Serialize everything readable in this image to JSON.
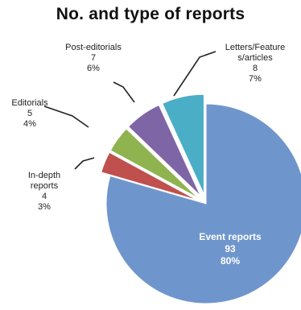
{
  "chart_data": {
    "type": "pie",
    "title": "No. and type of reports",
    "slices": [
      {
        "name": "Event reports",
        "value": 93,
        "percent": "80%",
        "color": "#6f96cc"
      },
      {
        "name": "In-depth reports",
        "value": 4,
        "percent": "3%",
        "color": "#c0504d"
      },
      {
        "name": "Editorials",
        "value": 5,
        "percent": "4%",
        "color": "#8fb34f"
      },
      {
        "name": "Post-editorials",
        "value": 7,
        "percent": "6%",
        "color": "#7e65a5"
      },
      {
        "name": "Letters/Features/articles",
        "value": 8,
        "percent": "7%",
        "color": "#4aaec6"
      }
    ],
    "label_lines": [
      [
        "Event reports",
        "93",
        "80%"
      ],
      [
        "In-depth",
        "reports",
        "4",
        "3%"
      ],
      [
        "Editorials",
        "5",
        "4%"
      ],
      [
        "Post-editorials",
        "7",
        "6%"
      ],
      [
        "Letters/Feature",
        "s/articles",
        "8",
        "7%"
      ]
    ],
    "start_angle_deg": 0,
    "direction": "clockwise",
    "exploded": true,
    "legend": "none"
  }
}
